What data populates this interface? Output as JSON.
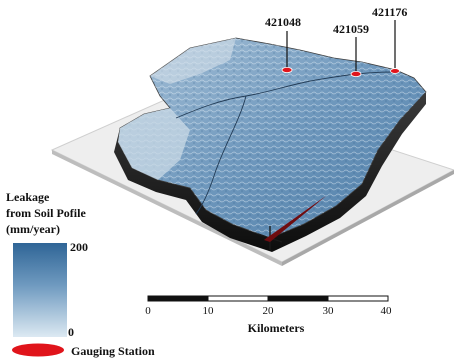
{
  "map": {
    "stations": [
      {
        "id": "421048"
      },
      {
        "id": "421059"
      },
      {
        "id": "421176"
      }
    ]
  },
  "legend": {
    "title_lines": [
      "Leakage",
      "from Soil Pofile",
      "(mm/year)"
    ],
    "max_label": "200",
    "min_label": "0",
    "station_label": "Gauging Station",
    "gradient_top_color": "#2f6596",
    "gradient_bottom_color": "#dce9f2",
    "station_color": "#e0141b"
  },
  "scalebar": {
    "ticks": [
      "0",
      "10",
      "20",
      "30",
      "40"
    ],
    "unit": "Kilometers"
  }
}
